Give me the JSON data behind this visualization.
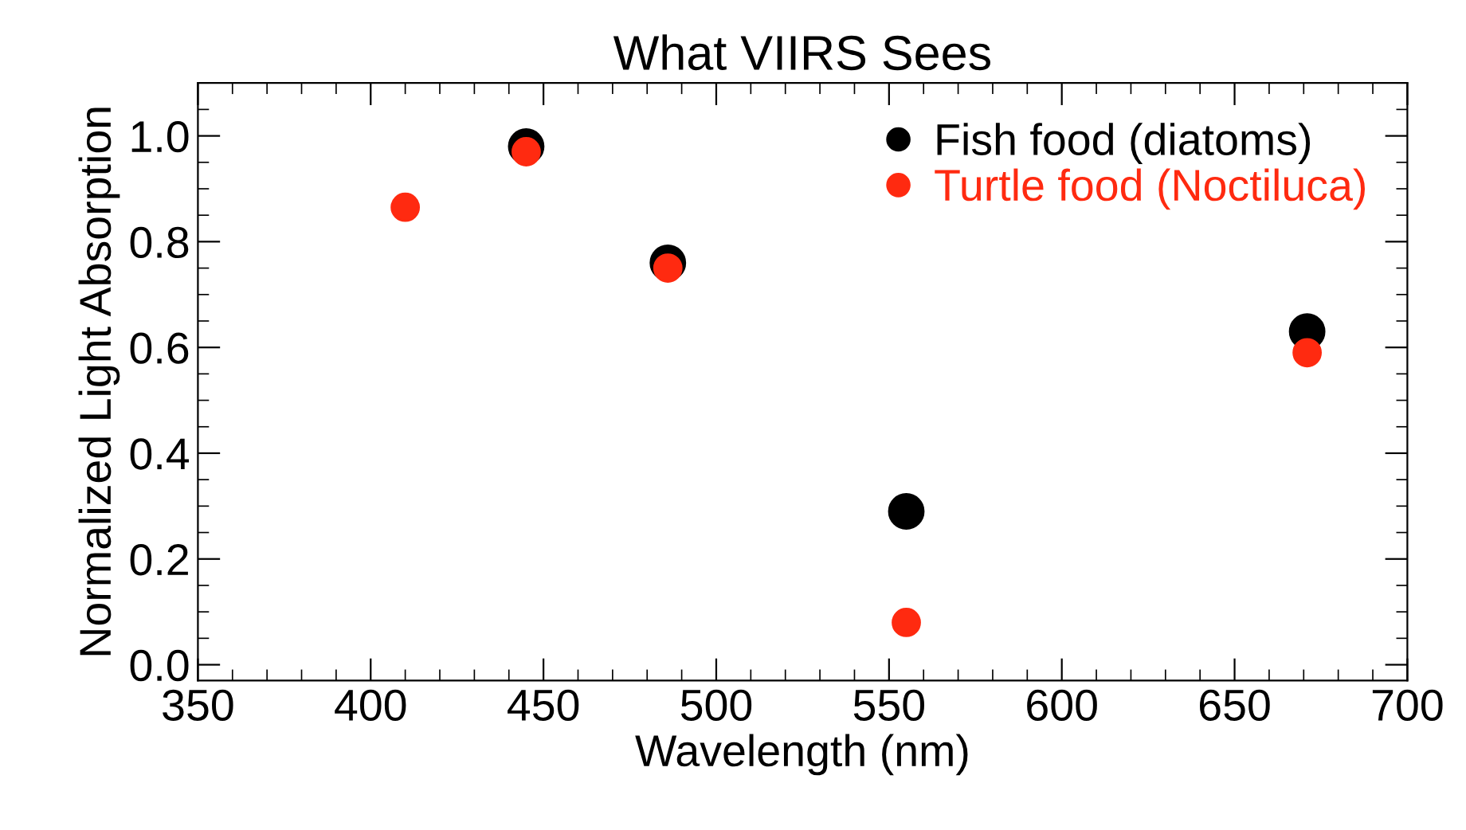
{
  "chart_data": {
    "type": "scatter",
    "title": "What VIIRS Sees",
    "xlabel": "Wavelength (nm)",
    "ylabel": "Normalized Light Absorption",
    "xlim": [
      350,
      700
    ],
    "xticks": [
      350,
      400,
      450,
      500,
      550,
      600,
      650,
      700
    ],
    "ylim": [
      -0.03,
      1.1
    ],
    "yticks": [
      {
        "value": 0,
        "label": "0.0"
      },
      0.2,
      0.4,
      0.6,
      0.8,
      {
        "value": 1,
        "label": "1.0"
      }
    ],
    "marker": "circle",
    "grid": false,
    "legend": "top right",
    "series": [
      {
        "name": "Fish food (diatoms)",
        "color": "#000000",
        "x": [
          445,
          486,
          555,
          671
        ],
        "values": [
          0.98,
          0.76,
          0.29,
          0.63
        ]
      },
      {
        "name": "Turtle food (Noctiluca)",
        "color": "#ff2a10",
        "x": [
          410,
          445,
          486,
          555,
          671
        ],
        "values": [
          0.865,
          0.97,
          0.75,
          0.08,
          0.59
        ]
      }
    ]
  }
}
